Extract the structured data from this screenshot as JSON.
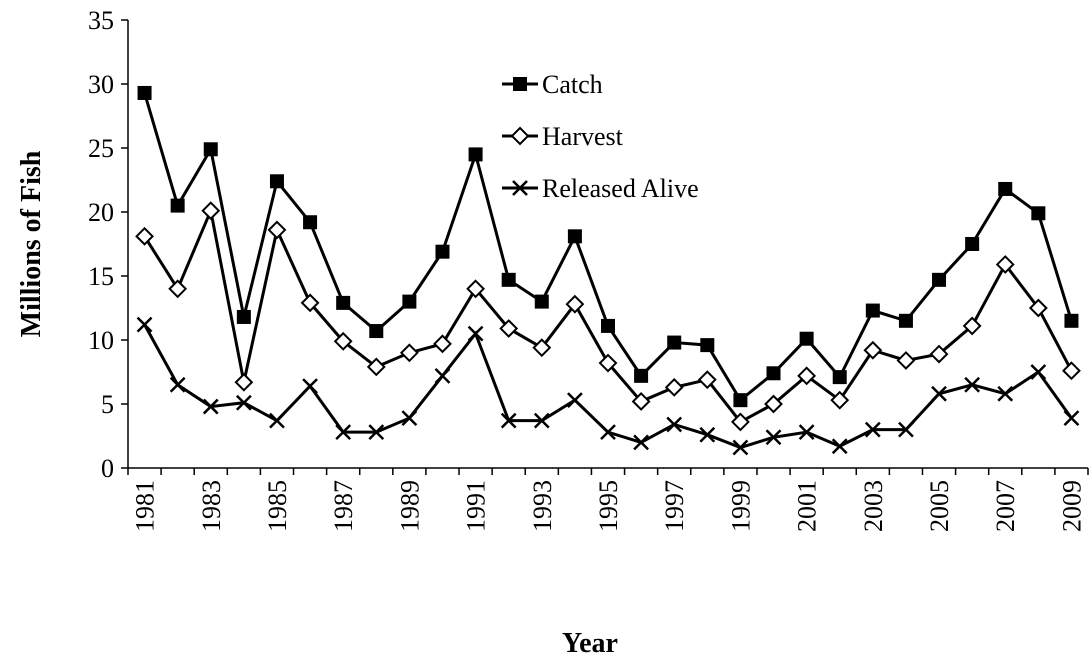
{
  "chart_data": {
    "type": "line",
    "x_label": "Year",
    "y_label": "Millions of Fish",
    "categories": [
      "1981",
      null,
      "1983",
      null,
      "1985",
      null,
      "1987",
      null,
      "1989",
      null,
      "1991",
      null,
      "1993",
      null,
      "1995",
      null,
      "1997",
      null,
      "1999",
      null,
      "2001",
      null,
      "2003",
      null,
      "2005",
      null,
      "2007",
      null,
      "2009"
    ],
    "series": [
      {
        "name": "Catch",
        "color": "#000000",
        "marker": "square",
        "values": [
          29.3,
          20.5,
          24.9,
          11.8,
          22.4,
          19.2,
          12.9,
          10.7,
          13.0,
          16.9,
          24.5,
          14.7,
          13.0,
          18.1,
          11.1,
          7.2,
          9.8,
          9.6,
          5.3,
          7.4,
          10.1,
          7.1,
          12.3,
          11.5,
          14.7,
          17.5,
          21.8,
          19.9,
          11.5
        ]
      },
      {
        "name": "Harvest",
        "color": "#000000",
        "marker": "diamond",
        "values": [
          18.1,
          14.0,
          20.1,
          6.7,
          18.6,
          12.9,
          9.9,
          7.9,
          9.0,
          9.7,
          14.0,
          10.9,
          9.4,
          12.8,
          8.2,
          5.2,
          6.3,
          6.9,
          3.6,
          5.0,
          7.2,
          5.3,
          9.2,
          8.4,
          8.9,
          11.1,
          15.9,
          12.5,
          7.6
        ]
      },
      {
        "name": "Released Alive",
        "color": "#000000",
        "marker": "x",
        "values": [
          11.2,
          6.5,
          4.8,
          5.1,
          3.7,
          6.4,
          2.8,
          2.8,
          3.9,
          7.2,
          10.5,
          3.7,
          3.7,
          5.3,
          2.8,
          2.0,
          3.4,
          2.6,
          1.6,
          2.4,
          2.8,
          1.7,
          3.0,
          3.0,
          5.8,
          6.5,
          5.8,
          7.5,
          3.9
        ]
      }
    ],
    "ylim": [
      0,
      35
    ],
    "yticks": [
      0,
      5,
      10,
      15,
      20,
      25,
      30,
      35
    ],
    "grid": false
  }
}
